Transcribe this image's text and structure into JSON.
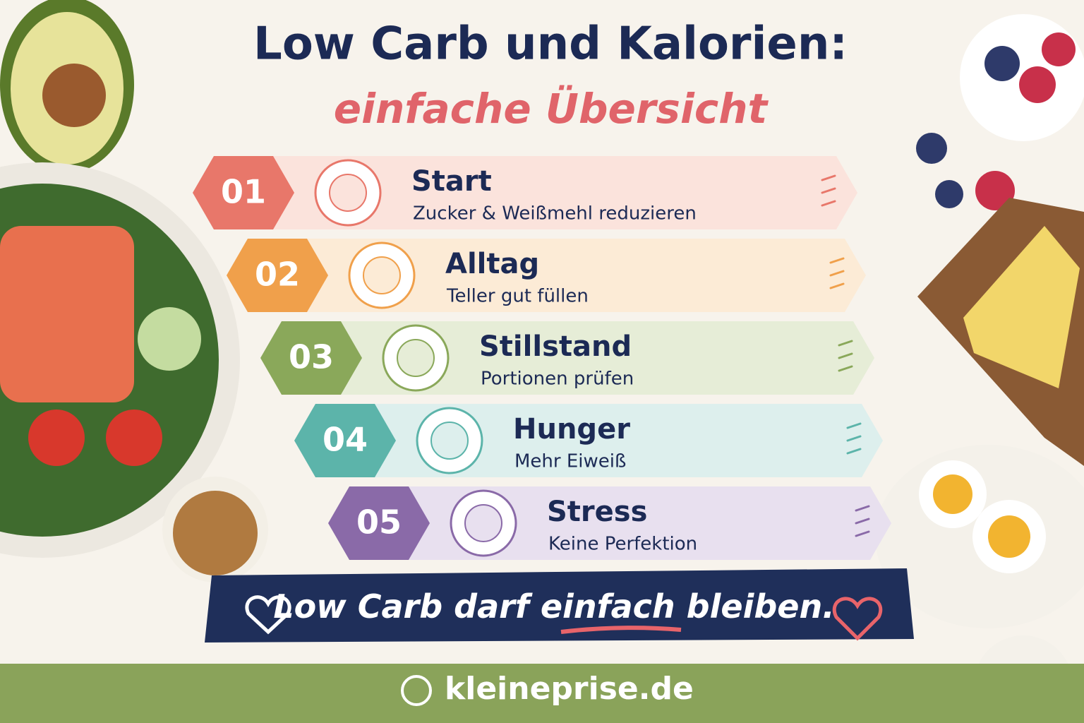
{
  "header": {
    "title": "Low Carb und Kalorien:",
    "subtitle": "einfache Übersicht"
  },
  "steps": [
    {
      "number": "01",
      "title": "Start",
      "text": "Zucker & Weißmehl reduzieren"
    },
    {
      "number": "02",
      "title": "Alltag",
      "text": "Teller gut füllen"
    },
    {
      "number": "03",
      "title": "Stillstand",
      "text": "Portionen prüfen"
    },
    {
      "number": "04",
      "title": "Hunger",
      "text": "Mehr Eiweiß"
    },
    {
      "number": "05",
      "title": "Stress",
      "text": "Keine Perfektion"
    }
  ],
  "banner": {
    "parts": [
      "Low Carb darf",
      "einfach",
      "bleiben."
    ]
  },
  "footer": {
    "website": "kleineprise.de"
  }
}
